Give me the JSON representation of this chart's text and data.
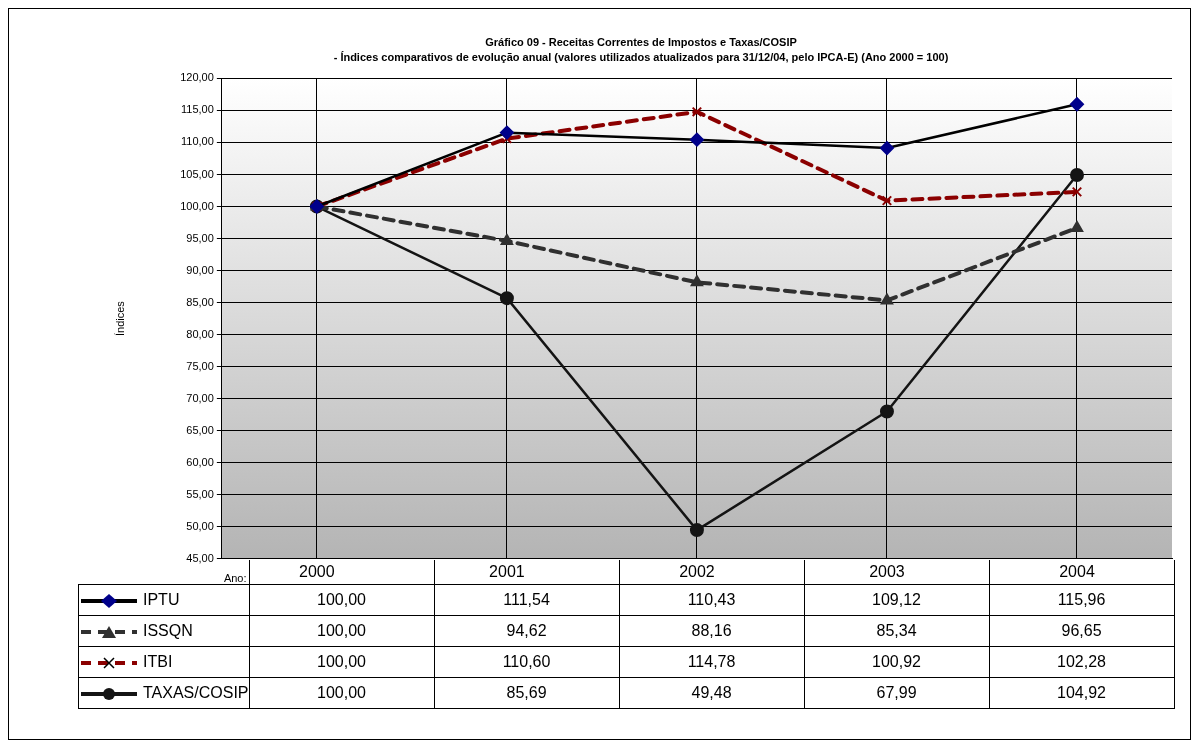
{
  "chart_data": {
    "type": "line",
    "title": "Gráfico 09 - Receitas Correntes de Impostos e Taxas/COSIP",
    "subtitle": "- Índices comparativos de evolução anual (valores utilizados atualizados para 31/12/04, pelo IPCA-E) (Ano 2000 = 100)",
    "xlabel": "Ano:",
    "ylabel": "Índices",
    "categories": [
      "2000",
      "2001",
      "2002",
      "2003",
      "2004"
    ],
    "series": [
      {
        "name": "IPTU",
        "color": "#000000",
        "marker": "diamond",
        "line_style": "solid",
        "values": [
          100.0,
          111.54,
          110.43,
          109.12,
          115.96
        ],
        "value_labels": [
          "100,00",
          "111,54",
          "110,43",
          "109,12",
          "115,96"
        ]
      },
      {
        "name": "ISSQN",
        "color": "#303030",
        "marker": "triangle",
        "line_style": "dashed",
        "values": [
          100.0,
          94.62,
          88.16,
          85.34,
          96.65
        ],
        "value_labels": [
          "100,00",
          "94,62",
          "88,16",
          "85,34",
          "96,65"
        ]
      },
      {
        "name": "ITBI",
        "color": "#8b0000",
        "marker": "cross",
        "line_style": "dashed",
        "values": [
          100.0,
          110.6,
          114.78,
          100.92,
          102.28
        ],
        "value_labels": [
          "100,00",
          "110,60",
          "114,78",
          "100,92",
          "102,28"
        ]
      },
      {
        "name": "TAXAS/COSIP",
        "color": "#141414",
        "marker": "circle",
        "line_style": "solid",
        "values": [
          100.0,
          85.69,
          49.48,
          67.99,
          104.92
        ],
        "value_labels": [
          "100,00",
          "85,69",
          "49,48",
          "67,99",
          "104,92"
        ]
      }
    ],
    "ylim": [
      45,
      120
    ],
    "yticks": [
      {
        "value": 45,
        "label": "45,00"
      },
      {
        "value": 50,
        "label": "50,00"
      },
      {
        "value": 55,
        "label": "55,00"
      },
      {
        "value": 60,
        "label": "60,00"
      },
      {
        "value": 65,
        "label": "65,00"
      },
      {
        "value": 70,
        "label": "70,00"
      },
      {
        "value": 75,
        "label": "75,00"
      },
      {
        "value": 80,
        "label": "80,00"
      },
      {
        "value": 85,
        "label": "85,00"
      },
      {
        "value": 90,
        "label": "90,00"
      },
      {
        "value": 95,
        "label": "95,00"
      },
      {
        "value": 100,
        "label": "100,00"
      },
      {
        "value": 105,
        "label": "105,00"
      },
      {
        "value": 110,
        "label": "110,00"
      },
      {
        "value": 115,
        "label": "115,00"
      },
      {
        "value": 120,
        "label": "120,00"
      }
    ],
    "grid": true,
    "legend": "bottom left"
  }
}
